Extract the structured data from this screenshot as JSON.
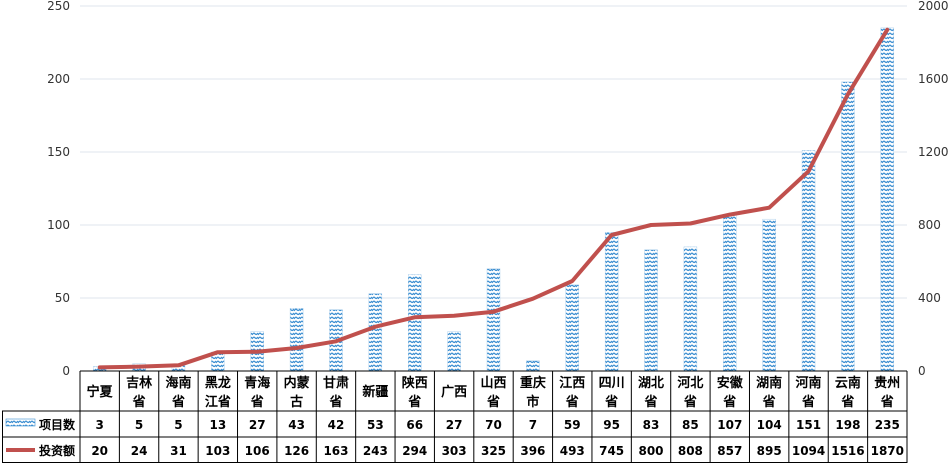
{
  "chart_data": {
    "type": "bar",
    "title": "",
    "categories": [
      "宁夏",
      "吉林省",
      "海南省",
      "黑龙江省",
      "青海省",
      "内蒙古",
      "甘肃省",
      "新疆",
      "陕西省",
      "广西",
      "山西省",
      "重庆市",
      "江西省",
      "四川省",
      "湖北省",
      "河北省",
      "安徽省",
      "湖南省",
      "河南省",
      "云南省",
      "贵州省"
    ],
    "category_lines": [
      [
        "宁夏"
      ],
      [
        "吉林",
        "省"
      ],
      [
        "海南",
        "省"
      ],
      [
        "黑龙",
        "江省"
      ],
      [
        "青海",
        "省"
      ],
      [
        "内蒙",
        "古"
      ],
      [
        "甘肃",
        "省"
      ],
      [
        "新疆"
      ],
      [
        "陕西",
        "省"
      ],
      [
        "广西"
      ],
      [
        "山西",
        "省"
      ],
      [
        "重庆",
        "市"
      ],
      [
        "江西",
        "省"
      ],
      [
        "四川",
        "省"
      ],
      [
        "湖北",
        "省"
      ],
      [
        "河北",
        "省"
      ],
      [
        "安徽",
        "省"
      ],
      [
        "湖南",
        "省"
      ],
      [
        "河南",
        "省"
      ],
      [
        "云南",
        "省"
      ],
      [
        "贵州",
        "省"
      ]
    ],
    "series": [
      {
        "name": "项目数",
        "type": "bar",
        "axis": "left",
        "color": "#3d8fd1",
        "values": [
          3,
          5,
          5,
          13,
          27,
          43,
          42,
          53,
          66,
          27,
          70,
          7,
          59,
          95,
          83,
          85,
          107,
          104,
          151,
          198,
          235
        ]
      },
      {
        "name": "投资额",
        "type": "line",
        "axis": "right",
        "color": "#c0504d",
        "values": [
          20,
          24,
          31,
          103,
          106,
          126,
          163,
          243,
          294,
          303,
          325,
          396,
          493,
          745,
          800,
          808,
          857,
          895,
          1094,
          1516,
          1870
        ]
      }
    ],
    "y_left": {
      "min": 0,
      "max": 250,
      "ticks": [
        "0",
        "50",
        "100",
        "150",
        "200",
        "250"
      ]
    },
    "y_right": {
      "min": 0,
      "max": 2000,
      "ticks": [
        "0",
        "400",
        "800",
        "1200",
        "1600",
        "2000"
      ]
    },
    "gridlines": true,
    "legend": "data-table-left"
  }
}
